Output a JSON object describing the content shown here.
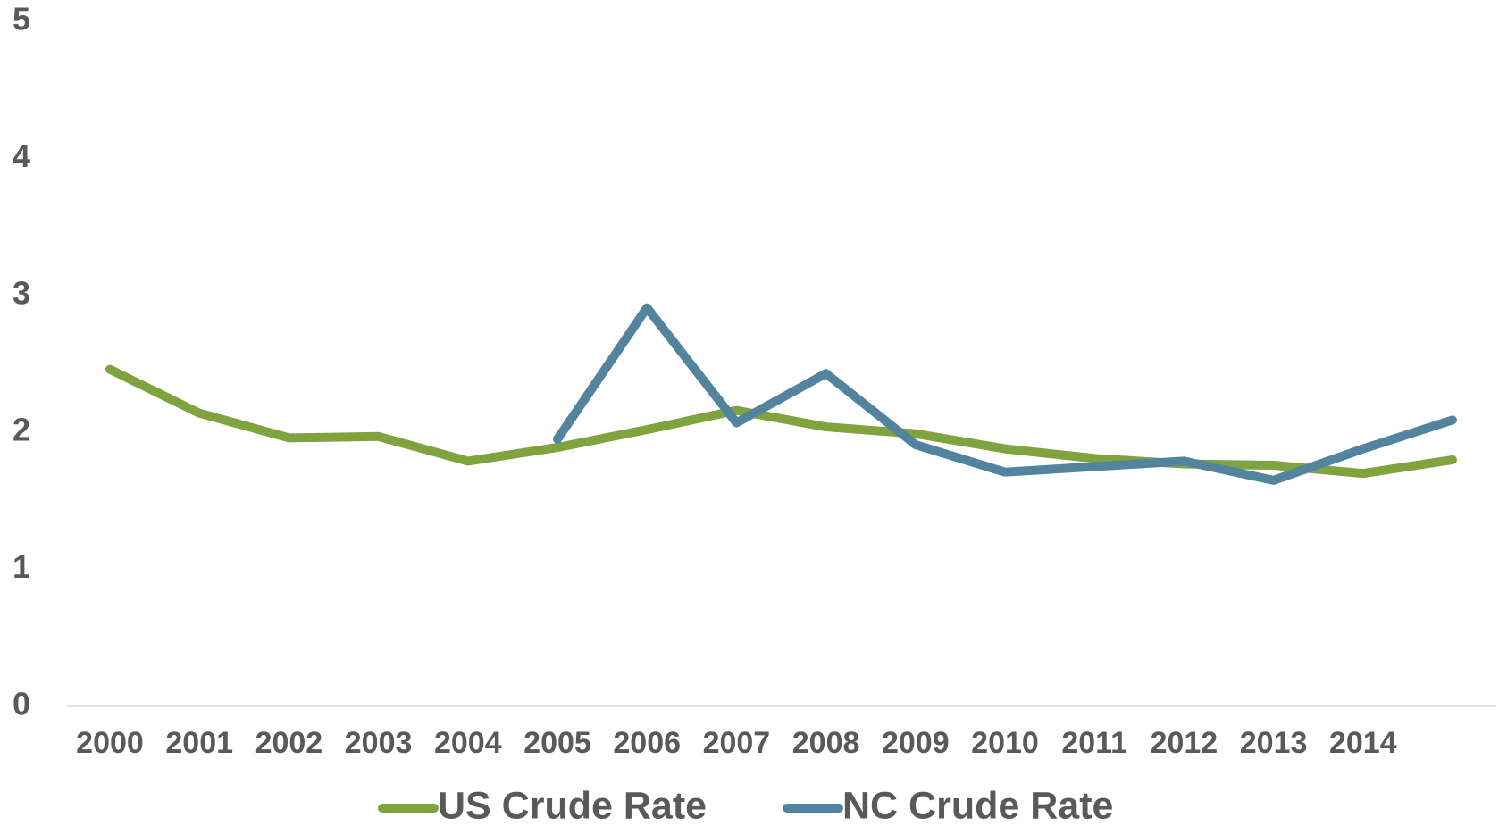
{
  "chart_data": {
    "type": "line",
    "categories": [
      "2000",
      "2001",
      "2002",
      "2003",
      "2004",
      "2005",
      "2006",
      "2007",
      "2008",
      "2009",
      "2010",
      "2011",
      "2012",
      "2013",
      "2014",
      null
    ],
    "series": [
      {
        "name": "US Crude Rate",
        "color": "#7fa33e",
        "values": [
          2.46,
          2.14,
          1.96,
          1.97,
          1.79,
          1.89,
          2.02,
          2.16,
          2.04,
          1.99,
          1.88,
          1.81,
          1.77,
          1.76,
          1.7,
          1.8
        ]
      },
      {
        "name": "NC Crude Rate",
        "color": "#52849e",
        "values": [
          null,
          null,
          null,
          null,
          null,
          1.95,
          2.91,
          2.07,
          2.43,
          1.91,
          1.71,
          1.75,
          1.79,
          1.65,
          1.88,
          2.09
        ]
      }
    ],
    "ylim": [
      0,
      5
    ],
    "yticks": [
      0,
      1,
      2,
      3,
      4,
      5
    ],
    "grid": false,
    "legend": "bottom"
  }
}
